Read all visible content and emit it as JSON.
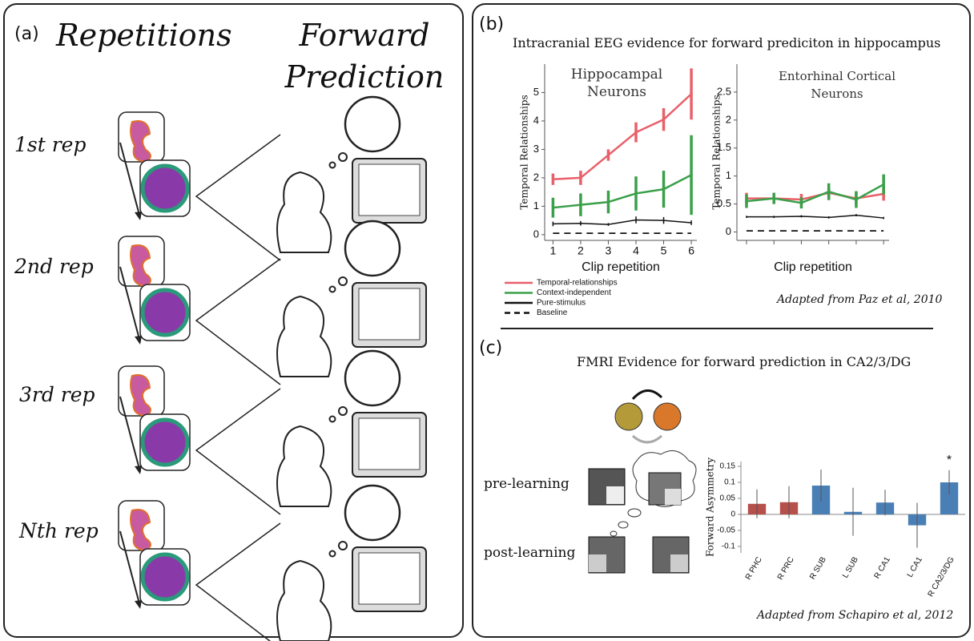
{
  "panels": {
    "a": {
      "label": "(a)",
      "heading": "Repetitions",
      "heading2": "Forward Prediction",
      "reps": [
        "1st rep",
        "2nd rep",
        "3rd rep",
        "Nth rep"
      ]
    },
    "b": {
      "label": "(b)",
      "title": "Intracranial EEG evidence for forward prediciton in hippocampus",
      "credit": "Adapted from Paz et al, 2010"
    },
    "c": {
      "label": "(c)",
      "title": "FMRI Evidence for forward prediction in CA2/3/DG",
      "pre": "pre-learning",
      "post": "post-learning",
      "credit": "Adapted from Schapiro et al, 2012"
    }
  },
  "chart_data": [
    {
      "type": "line",
      "title": "Hippocampal Neurons",
      "x_label": "Clip repetition",
      "y_label": "Temporal Relationships",
      "x": [
        1,
        2,
        3,
        4,
        5,
        6
      ],
      "xlim": [
        0.7,
        6.2
      ],
      "xticks": [
        1,
        2,
        3,
        4,
        5,
        6
      ],
      "ylim": [
        -0.2,
        6
      ],
      "yticks": [
        0,
        1,
        2,
        3,
        4,
        5
      ],
      "legend": "bottom",
      "series": [
        {
          "name": "Temporal-relationships",
          "color": "#e8606a",
          "values": [
            1.95,
            2.0,
            2.8,
            3.6,
            4.05,
            4.95
          ],
          "errors": [
            0.2,
            0.25,
            0.2,
            0.35,
            0.4,
            0.9
          ]
        },
        {
          "name": "Context-independent",
          "color": "#3aa04a",
          "values": [
            0.95,
            1.05,
            1.15,
            1.45,
            1.6,
            2.1
          ],
          "errors": [
            0.35,
            0.4,
            0.4,
            0.6,
            0.65,
            1.4
          ]
        },
        {
          "name": "Pure-stimulus",
          "color": "#111111",
          "values": [
            0.38,
            0.4,
            0.36,
            0.52,
            0.5,
            0.42
          ],
          "errors": [
            0.08,
            0.08,
            0.05,
            0.12,
            0.12,
            0.08
          ]
        },
        {
          "name": "Baseline",
          "color": "#111111",
          "style": "dashed",
          "values": [
            0.05,
            0.05,
            0.05,
            0.05,
            0.05,
            0.05
          ]
        }
      ]
    },
    {
      "type": "line",
      "title": "Entorhinal Cortical Neurons",
      "x_label": "Clip repetition",
      "y_label": "Temporal Relationships",
      "x": [
        1,
        2,
        3,
        4,
        5,
        6
      ],
      "xlim": [
        0.65,
        6.2
      ],
      "ylim": [
        -0.15,
        3
      ],
      "yticks": [
        0,
        {
          "value": 0.5,
          "label": "0.5"
        },
        1,
        {
          "value": 1.5,
          "label": "1.5"
        },
        2,
        {
          "value": 2.5,
          "label": "2.5"
        }
      ],
      "series": [
        {
          "color": "#e8606a",
          "values": [
            0.6,
            0.6,
            0.58,
            0.7,
            0.6,
            0.68
          ],
          "errors": [
            0.1,
            0.1,
            0.1,
            0.1,
            0.1,
            0.12
          ]
        },
        {
          "color": "#3aa04a",
          "values": [
            0.55,
            0.6,
            0.52,
            0.72,
            0.58,
            0.85
          ],
          "errors": [
            0.12,
            0.1,
            0.1,
            0.15,
            0.15,
            0.18
          ]
        },
        {
          "color": "#111111",
          "values": [
            0.27,
            0.27,
            0.28,
            0.26,
            0.3,
            0.25
          ],
          "errors": [
            0.02,
            0.02,
            0.02,
            0.02,
            0.02,
            0.02
          ]
        },
        {
          "color": "#111111",
          "style": "dashed",
          "values": [
            0.02,
            0.02,
            0.02,
            0.02,
            0.02,
            0.02
          ]
        }
      ]
    },
    {
      "type": "bar",
      "y_label": "Forward Asymmetry",
      "categories": [
        "R PHC",
        "R PRC",
        "R SUB",
        "L SUB",
        "R CA1",
        "L CA1",
        "R CA2/3/DG"
      ],
      "values": [
        0.033,
        0.038,
        0.09,
        0.008,
        0.037,
        -0.034,
        0.1
      ],
      "errors": [
        0.045,
        0.05,
        0.05,
        0.075,
        0.04,
        0.07,
        0.038
      ],
      "colors": [
        "#b5504a",
        "#b5504a",
        "#4a7fb5",
        "#4a7fb5",
        "#4a7fb5",
        "#4a7fb5",
        "#4a7fb5"
      ],
      "ylim": [
        -0.12,
        0.165
      ],
      "yticks": [
        {
          "value": -0.1,
          "label": "-0.1"
        },
        {
          "value": -0.05,
          "label": "-0.05"
        },
        0,
        {
          "value": 0.05,
          "label": "0.05"
        },
        {
          "value": 0.1,
          "label": "0.1"
        },
        {
          "value": 0.15,
          "label": "0.15"
        }
      ],
      "annotations": [
        {
          "text": "*",
          "index": 6
        }
      ]
    }
  ]
}
